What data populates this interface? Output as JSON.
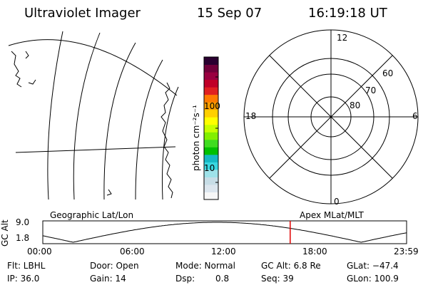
{
  "header": {
    "instrument": "Ultraviolet Imager",
    "date": "15 Sep 07",
    "time": "16:19:18 UT"
  },
  "colorbar": {
    "unit_label": "photon cm⁻²s⁻¹",
    "ticks": [
      "100",
      "10"
    ],
    "colors": [
      "#f7f7f7",
      "#dce6ee",
      "#c7dde6",
      "#9ee2e9",
      "#39d7e0",
      "#16b8c4",
      "#00c000",
      "#3fdc20",
      "#82ef00",
      "#c8ff00",
      "#ffff00",
      "#ffd000",
      "#ffa000",
      "#ff7a00",
      "#e02020",
      "#c00028",
      "#9a0040",
      "#70003a",
      "#2a0030"
    ]
  },
  "left_map": {
    "label": "Geographic Lat/Lon"
  },
  "right_map": {
    "label": "Apex MLat/MLT",
    "mlt_labels": {
      "top": "12",
      "left": "18",
      "right": "6",
      "bottom": "0"
    },
    "lat_labels": [
      "60",
      "70",
      "80"
    ]
  },
  "altitude_plot": {
    "ylabel": "GC Alt",
    "yticks": [
      "9.0",
      "1.8"
    ],
    "xticks": [
      "00:00",
      "06:00",
      "12:00",
      "18:00",
      "23:59"
    ],
    "current_time_hours": 16.32,
    "marker_color": "#e00000"
  },
  "info": {
    "filter": "Flt: LBHL",
    "ip": "IP: 36.0",
    "door": "Door: Open",
    "gain": "Gain: 14",
    "mode": "Mode: Normal",
    "dsp_label": "Dsp:",
    "dsp_value": "0.8",
    "gc_alt": "GC Alt: 6.8 Re",
    "seq": "Seq: 39",
    "glat": "GLat: −47.4",
    "glon": "GLon: 100.9"
  }
}
